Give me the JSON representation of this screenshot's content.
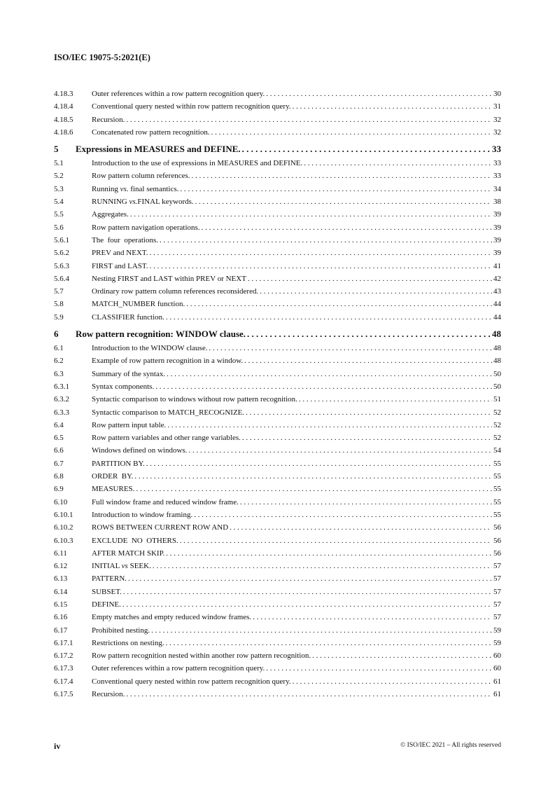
{
  "header": {
    "doc_id": "ISO/IEC 19075-5:2021(E)"
  },
  "toc": [
    {
      "num": "4.18.3",
      "title": "Outer references within a row pattern recognition query.",
      "page": "30",
      "level": "sub"
    },
    {
      "num": "4.18.4",
      "title": "Conventional query nested within row pattern recognition query.",
      "page": "31",
      "level": "sub"
    },
    {
      "num": "4.18.5",
      "title": "Recursion.",
      "page": "32",
      "level": "sub"
    },
    {
      "num": "4.18.6",
      "title": "Concatenated row pattern recognition.",
      "page": "32",
      "level": "sub"
    },
    {
      "num": "5",
      "title": "Expressions in MEASURES and DEFINE.",
      "page": "33",
      "level": "clause"
    },
    {
      "num": "5.1",
      "title": "Introduction to the use of expressions in MEASURES and DEFINE.",
      "page": "33",
      "level": "sub"
    },
    {
      "num": "5.2",
      "title": "Row pattern column references.",
      "page": "33",
      "level": "sub"
    },
    {
      "num": "5.3",
      "title": "Running vs. final semantics.",
      "page": "34",
      "level": "sub"
    },
    {
      "num": "5.4",
      "title": "RUNNING vs.FINAL keywords.",
      "page": "38",
      "level": "sub"
    },
    {
      "num": "5.5",
      "title": "Aggregates.",
      "page": "39",
      "level": "sub"
    },
    {
      "num": "5.6",
      "title": "Row pattern navigation operations.",
      "page": "39",
      "level": "sub"
    },
    {
      "num": "5.6.1",
      "title": "The  four  operations.",
      "page": "39",
      "level": "sub"
    },
    {
      "num": "5.6.2",
      "title": "PREV and NEXT.",
      "page": "39",
      "level": "sub"
    },
    {
      "num": "5.6.3",
      "title": "FIRST and LAST.",
      "page": "41",
      "level": "sub"
    },
    {
      "num": "5.6.4",
      "title": "Nesting FIRST and LAST within PREV or NEXT",
      "page": "42",
      "level": "sub"
    },
    {
      "num": "5.7",
      "title": "Ordinary row pattern column references reconsidered.",
      "page": "43",
      "level": "sub"
    },
    {
      "num": "5.8",
      "title": "MATCH_NUMBER function.",
      "page": "44",
      "level": "sub"
    },
    {
      "num": "5.9",
      "title": "CLASSIFIER function.",
      "page": "44",
      "level": "sub"
    },
    {
      "num": "6",
      "title": "Row pattern recognition: WINDOW clause.",
      "page": "48",
      "level": "clause"
    },
    {
      "num": "6.1",
      "title": "Introduction to the WINDOW clause.",
      "page": "48",
      "level": "sub"
    },
    {
      "num": "6.2",
      "title": "Example of row pattern recognition in a window.",
      "page": "48",
      "level": "sub"
    },
    {
      "num": "6.3",
      "title": "Summary of the syntax.",
      "page": "50",
      "level": "sub"
    },
    {
      "num": "6.3.1",
      "title": "Syntax components.",
      "page": "50",
      "level": "sub"
    },
    {
      "num": "6.3.2",
      "title": "Syntactic comparison to windows without row pattern recognition.",
      "page": "51",
      "level": "sub"
    },
    {
      "num": "6.3.3",
      "title": "Syntactic comparison to MATCH_RECOGNIZE.",
      "page": "52",
      "level": "sub"
    },
    {
      "num": "6.4",
      "title": "Row pattern input table.",
      "page": "52",
      "level": "sub"
    },
    {
      "num": "6.5",
      "title": "Row pattern variables and other range variables.",
      "page": "52",
      "level": "sub"
    },
    {
      "num": "6.6",
      "title": "Windows defined on windows.",
      "page": "54",
      "level": "sub"
    },
    {
      "num": "6.7",
      "title": "PARTITION BY.",
      "page": "55",
      "level": "sub"
    },
    {
      "num": "6.8",
      "title": "ORDER  BY.",
      "page": "55",
      "level": "sub"
    },
    {
      "num": "6.9",
      "title": "MEASURES.",
      "page": "55",
      "level": "sub"
    },
    {
      "num": "6.10",
      "title": "Full window frame and reduced window frame.",
      "page": "55",
      "level": "sub"
    },
    {
      "num": "6.10.1",
      "title": "Introduction to window framing.",
      "page": "55",
      "level": "sub"
    },
    {
      "num": "6.10.2",
      "title": "ROWS BETWEEN CURRENT ROW AND",
      "page": "56",
      "level": "sub"
    },
    {
      "num": "6.10.3",
      "title": "EXCLUDE  NO  OTHERS.",
      "page": "56",
      "level": "sub"
    },
    {
      "num": "6.11",
      "title": "AFTER MATCH SKIP.",
      "page": "56",
      "level": "sub"
    },
    {
      "num": "6.12",
      "title": "INITIAL vs SEEK.",
      "page": "57",
      "level": "sub"
    },
    {
      "num": "6.13",
      "title": "PATTERN.",
      "page": "57",
      "level": "sub"
    },
    {
      "num": "6.14",
      "title": "SUBSET.",
      "page": "57",
      "level": "sub"
    },
    {
      "num": "6.15",
      "title": "DEFINE.",
      "page": "57",
      "level": "sub"
    },
    {
      "num": "6.16",
      "title": "Empty matches and empty reduced window frames.",
      "page": "57",
      "level": "sub"
    },
    {
      "num": "6.17",
      "title": "Prohibited nesting.",
      "page": "59",
      "level": "sub"
    },
    {
      "num": "6.17.1",
      "title": "Restrictions on nesting.",
      "page": "59",
      "level": "sub"
    },
    {
      "num": "6.17.2",
      "title": "Row pattern recognition nested within another row pattern recognition.",
      "page": "60",
      "level": "sub"
    },
    {
      "num": "6.17.3",
      "title": "Outer references within a row pattern recognition query.",
      "page": "60",
      "level": "sub"
    },
    {
      "num": "6.17.4",
      "title": "Conventional query nested within row pattern recognition query.",
      "page": "61",
      "level": "sub"
    },
    {
      "num": "6.17.5",
      "title": "Recursion.",
      "page": "61",
      "level": "sub"
    }
  ],
  "footer": {
    "page_number": "iv",
    "copyright": "© ISO/IEC 2021 – All rights reserved"
  }
}
